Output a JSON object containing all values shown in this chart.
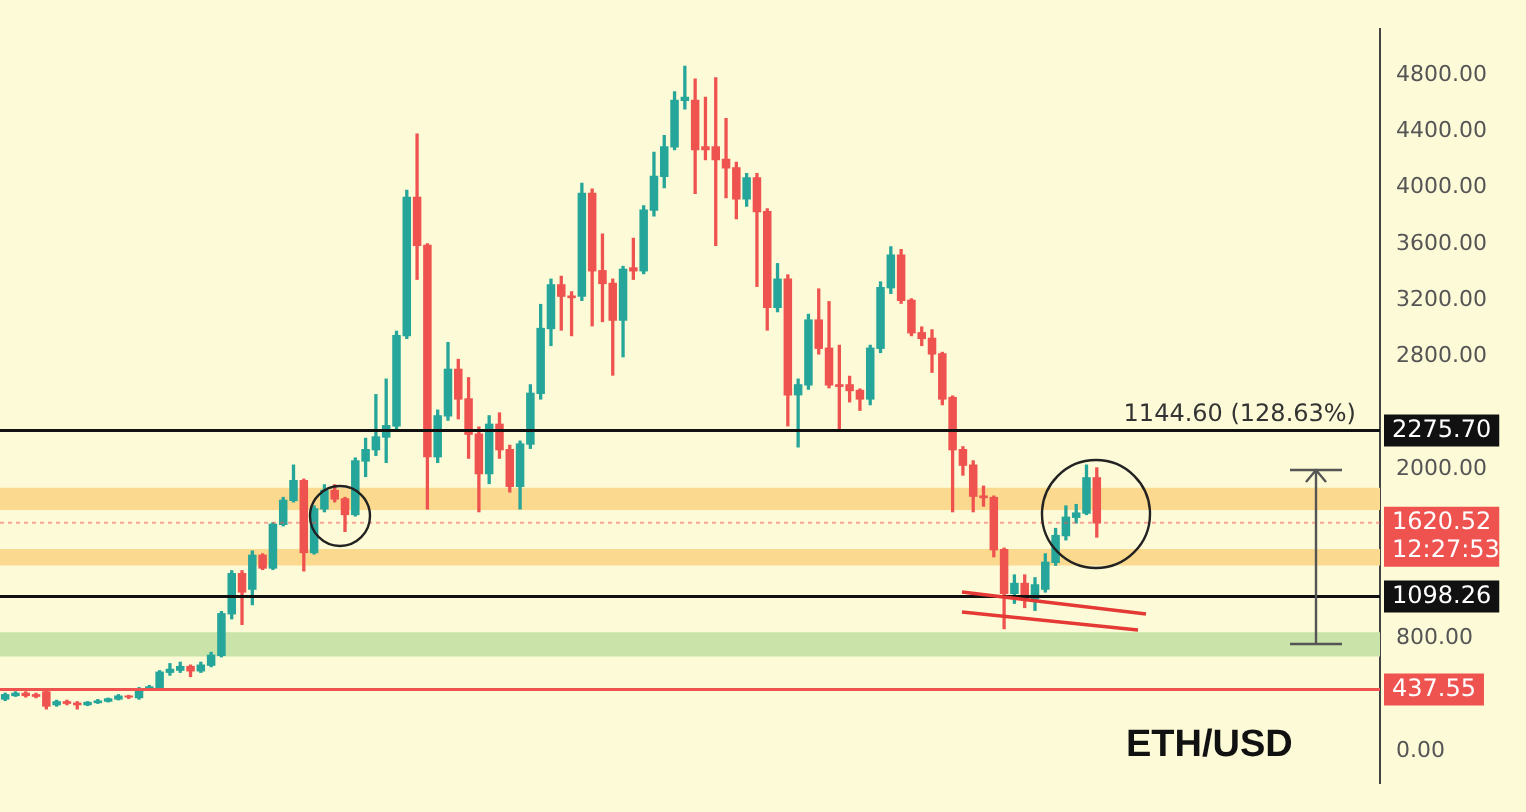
{
  "chart_data": {
    "type": "candlestick",
    "title": "ETH/USD",
    "categories": [
      null,
      null,
      null,
      null,
      null,
      null,
      null,
      null,
      null,
      null,
      null,
      null,
      null,
      null,
      null,
      null,
      null,
      null,
      null,
      null,
      null,
      null,
      null,
      null,
      null,
      null,
      null,
      null,
      null,
      null,
      null,
      null,
      null,
      null,
      null,
      null,
      null,
      null,
      null,
      null,
      null,
      null,
      null,
      null,
      null,
      null,
      null,
      null,
      null,
      null,
      null,
      null,
      null,
      null,
      null,
      null,
      null,
      null,
      null,
      null,
      null,
      null,
      null,
      null,
      null,
      null,
      null,
      null,
      null,
      null,
      null,
      null,
      null,
      null,
      null,
      null,
      null,
      null,
      null,
      null,
      null,
      null,
      null,
      null,
      null,
      null,
      null,
      null,
      null,
      null,
      null,
      null,
      null,
      null,
      null,
      null,
      null,
      null,
      null,
      null,
      null,
      null,
      null,
      null,
      null,
      null,
      null,
      null,
      null,
      null,
      null,
      null,
      null,
      null,
      null,
      null,
      null,
      null,
      null,
      null,
      null,
      null,
      null,
      null,
      null,
      null,
      null,
      null,
      null,
      null,
      null,
      null,
      null,
      null
    ],
    "ohlc": [
      [
        370,
        410,
        360,
        400
      ],
      [
        395,
        420,
        390,
        410
      ],
      [
        410,
        420,
        385,
        395
      ],
      [
        400,
        410,
        380,
        390
      ],
      [
        420,
        430,
        300,
        320
      ],
      [
        330,
        360,
        320,
        350
      ],
      [
        350,
        360,
        330,
        340
      ],
      [
        340,
        350,
        300,
        330
      ],
      [
        330,
        350,
        325,
        345
      ],
      [
        345,
        365,
        340,
        355
      ],
      [
        355,
        375,
        350,
        370
      ],
      [
        370,
        400,
        365,
        390
      ],
      [
        390,
        395,
        375,
        385
      ],
      [
        380,
        450,
        370,
        440
      ],
      [
        440,
        465,
        435,
        455
      ],
      [
        450,
        570,
        445,
        560
      ],
      [
        560,
        620,
        540,
        580
      ],
      [
        575,
        630,
        560,
        600
      ],
      [
        600,
        610,
        530,
        570
      ],
      [
        570,
        630,
        560,
        610
      ],
      [
        610,
        700,
        600,
        680
      ],
      [
        680,
        990,
        670,
        975
      ],
      [
        975,
        1280,
        940,
        1260
      ],
      [
        1260,
        1280,
        900,
        1130
      ],
      [
        1150,
        1420,
        1040,
        1390
      ],
      [
        1390,
        1400,
        1290,
        1300
      ],
      [
        1300,
        1620,
        1290,
        1610
      ],
      [
        1610,
        1800,
        1600,
        1780
      ],
      [
        1780,
        2030,
        1770,
        1920
      ],
      [
        1920,
        1930,
        1280,
        1410
      ],
      [
        1410,
        1740,
        1400,
        1720
      ],
      [
        1720,
        1890,
        1700,
        1850
      ],
      [
        1850,
        1890,
        1770,
        1790
      ],
      [
        1790,
        1800,
        1560,
        1680
      ],
      [
        1680,
        2080,
        1670,
        2060
      ],
      [
        2060,
        2220,
        1950,
        2140
      ],
      [
        2140,
        2530,
        2100,
        2230
      ],
      [
        2230,
        2640,
        2050,
        2310
      ],
      [
        2310,
        2980,
        2280,
        2950
      ],
      [
        2950,
        3980,
        2930,
        3930
      ],
      [
        3930,
        4380,
        3350,
        3590
      ],
      [
        3590,
        3600,
        1720,
        2090
      ],
      [
        2090,
        2420,
        2050,
        2380
      ],
      [
        2380,
        2900,
        2350,
        2710
      ],
      [
        2710,
        2780,
        2360,
        2500
      ],
      [
        2500,
        2650,
        2080,
        2250
      ],
      [
        2250,
        2300,
        1700,
        1970
      ],
      [
        1970,
        2380,
        1900,
        2320
      ],
      [
        2320,
        2400,
        2080,
        2140
      ],
      [
        2140,
        2170,
        1840,
        1880
      ],
      [
        1880,
        2200,
        1720,
        2180
      ],
      [
        2180,
        2600,
        2150,
        2540
      ],
      [
        2540,
        3170,
        2500,
        3000
      ],
      [
        3000,
        3350,
        2880,
        3310
      ],
      [
        3310,
        3370,
        2990,
        3230
      ],
      [
        3230,
        3260,
        2950,
        3220
      ],
      [
        3230,
        4030,
        3200,
        3960
      ],
      [
        3960,
        3990,
        3020,
        3410
      ],
      [
        3410,
        3670,
        3050,
        3320
      ],
      [
        3320,
        3350,
        2670,
        3060
      ],
      [
        3060,
        3440,
        2800,
        3420
      ],
      [
        3430,
        3640,
        3350,
        3410
      ],
      [
        3410,
        3870,
        3390,
        3840
      ],
      [
        3840,
        4250,
        3800,
        4080
      ],
      [
        4080,
        4370,
        4000,
        4290
      ],
      [
        4290,
        4680,
        4270,
        4620
      ],
      [
        4620,
        4860,
        4560,
        4640
      ],
      [
        4620,
        4770,
        3960,
        4270
      ],
      [
        4290,
        4640,
        4200,
        4270
      ],
      [
        4290,
        4780,
        3590,
        4200
      ],
      [
        4200,
        4490,
        3930,
        4140
      ],
      [
        4140,
        4180,
        3780,
        3920
      ],
      [
        3920,
        4100,
        3870,
        4070
      ],
      [
        4070,
        4100,
        3300,
        3830
      ],
      [
        3830,
        3850,
        2990,
        3150
      ],
      [
        3150,
        3460,
        3120,
        3350
      ],
      [
        3350,
        3380,
        2310,
        2530
      ],
      [
        2530,
        2640,
        2160,
        2600
      ],
      [
        2600,
        3100,
        2570,
        3060
      ],
      [
        3060,
        3280,
        2820,
        2860
      ],
      [
        2860,
        3190,
        2580,
        2600
      ],
      [
        2600,
        2880,
        2290,
        2590
      ],
      [
        2600,
        2660,
        2480,
        2560
      ],
      [
        2560,
        2570,
        2420,
        2500
      ],
      [
        2500,
        2880,
        2460,
        2860
      ],
      [
        2860,
        3330,
        2830,
        3290
      ],
      [
        3290,
        3580,
        3250,
        3520
      ],
      [
        3520,
        3560,
        3180,
        3200
      ],
      [
        3200,
        3210,
        2950,
        2970
      ],
      [
        2970,
        3010,
        2880,
        2930
      ],
      [
        2930,
        2990,
        2690,
        2820
      ],
      [
        2820,
        2830,
        2460,
        2500
      ],
      [
        2510,
        2520,
        1700,
        2140
      ],
      [
        2140,
        2160,
        1960,
        2030
      ],
      [
        2030,
        2060,
        1700,
        1810
      ],
      [
        1810,
        1880,
        1740,
        1800
      ],
      [
        1800,
        1810,
        1380,
        1430
      ],
      [
        1430,
        1440,
        870,
        1120
      ],
      [
        1120,
        1250,
        1050,
        1190
      ],
      [
        1190,
        1250,
        1020,
        1080
      ],
      [
        1080,
        1230,
        1000,
        1180
      ],
      [
        1150,
        1400,
        1130,
        1340
      ],
      [
        1340,
        1580,
        1320,
        1530
      ],
      [
        1530,
        1740,
        1500,
        1660
      ],
      [
        1660,
        1750,
        1620,
        1690
      ],
      [
        1690,
        2030,
        1680,
        1940
      ],
      [
        1940,
        2010,
        1520,
        1620.52
      ],
      null,
      null,
      null,
      null,
      null,
      null,
      null,
      null,
      null,
      null,
      null,
      null,
      null,
      null,
      null,
      null,
      null,
      null,
      null,
      null,
      null,
      null,
      null,
      null,
      null,
      null,
      null
    ],
    "ylim": [
      -225,
      5125
    ],
    "yticks": [
      {
        "value": 0,
        "label": "0.00"
      },
      {
        "value": 800,
        "label": "800.00"
      },
      {
        "value": 2000,
        "label": "2000.00"
      },
      {
        "value": 2800,
        "label": "2800.00"
      },
      {
        "value": 3200,
        "label": "3200.00"
      },
      {
        "value": 3600,
        "label": "3600.00"
      },
      {
        "value": 4000,
        "label": "4000.00"
      },
      {
        "value": 4400,
        "label": "4400.00"
      },
      {
        "value": 4800,
        "label": "4800.00"
      }
    ],
    "tick_labels": "y",
    "grid": false,
    "legend": false,
    "bands": [
      {
        "axis": "y",
        "from": 1712,
        "to": 1870,
        "color": "#fbd98e"
      },
      {
        "axis": "y",
        "from": 1317,
        "to": 1435,
        "color": "#fbd98e"
      },
      {
        "axis": "y",
        "from": 672,
        "to": 843,
        "color": "#c9e3a8"
      }
    ],
    "ref_lines": [
      {
        "axis": "y",
        "value": 2275.7,
        "label": "2275.70",
        "color": "#111111"
      },
      {
        "axis": "y",
        "value": 1098.26,
        "label": "1098.26",
        "color": "#111111"
      },
      {
        "axis": "y",
        "value": 1620.52,
        "label": "1620.52",
        "color": "#ef5350",
        "line_style": "dotted"
      },
      {
        "axis": "y",
        "value": 437.55,
        "label": "437.55",
        "color": "#ef5350"
      }
    ],
    "annotations": [
      "1144.60 (128.63%)",
      "12:27:53"
    ]
  }
}
